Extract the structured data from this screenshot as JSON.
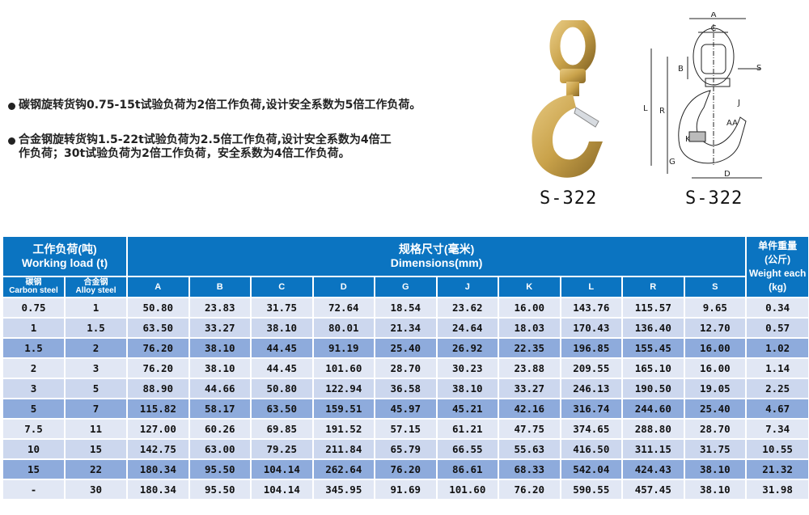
{
  "notes": [
    "碳钢旋转货钩0.75-15t试验负荷为2倍工作负荷,设计安全系数为5倍工作负荷。",
    "合金钢旋转货钩1.5-22t试验负荷为2.5倍工作负荷,设计安全系数为4倍工作负荷；30t试验负荷为2倍工作负荷，安全系数为4倍工作负荷。"
  ],
  "product": {
    "photo_label": "S-322",
    "drawing_label": "S-322",
    "drawing_letters": [
      "A",
      "C",
      "B",
      "S",
      "L",
      "R",
      "J",
      "AA",
      "K",
      "G",
      "D"
    ],
    "photo_color": "#c9a24a"
  },
  "table": {
    "header_color": "#0b74c1",
    "working_load_cn": "工作负荷(吨)",
    "working_load_en": "Working load (t)",
    "dimensions_cn": "规格尺寸(毫米)",
    "dimensions_en": "Dimensions(mm)",
    "weight_cn": "单件重量",
    "weight_unit_cn": "(公斤)",
    "weight_en": "Weight each",
    "weight_unit_en": "(kg)",
    "carbon_cn": "碳钢",
    "carbon_en": "Carbon steel",
    "alloy_cn": "合金钢",
    "alloy_en": "Alloy steel",
    "dim_columns": [
      "A",
      "B",
      "C",
      "D",
      "G",
      "J",
      "K",
      "L",
      "R",
      "S"
    ],
    "rows": [
      [
        "0.75",
        "1",
        "50.80",
        "23.83",
        "31.75",
        "72.64",
        "18.54",
        "23.62",
        "16.00",
        "143.76",
        "115.57",
        "9.65",
        "0.34"
      ],
      [
        "1",
        "1.5",
        "63.50",
        "33.27",
        "38.10",
        "80.01",
        "21.34",
        "24.64",
        "18.03",
        "170.43",
        "136.40",
        "12.70",
        "0.57"
      ],
      [
        "1.5",
        "2",
        "76.20",
        "38.10",
        "44.45",
        "91.19",
        "25.40",
        "26.92",
        "22.35",
        "196.85",
        "155.45",
        "16.00",
        "1.02"
      ],
      [
        "2",
        "3",
        "76.20",
        "38.10",
        "44.45",
        "101.60",
        "28.70",
        "30.23",
        "23.88",
        "209.55",
        "165.10",
        "16.00",
        "1.14"
      ],
      [
        "3",
        "5",
        "88.90",
        "44.66",
        "50.80",
        "122.94",
        "36.58",
        "38.10",
        "33.27",
        "246.13",
        "190.50",
        "19.05",
        "2.25"
      ],
      [
        "5",
        "7",
        "115.82",
        "58.17",
        "63.50",
        "159.51",
        "45.97",
        "45.21",
        "42.16",
        "316.74",
        "244.60",
        "25.40",
        "4.67"
      ],
      [
        "7.5",
        "11",
        "127.00",
        "60.26",
        "69.85",
        "191.52",
        "57.15",
        "61.21",
        "47.75",
        "374.65",
        "288.80",
        "28.70",
        "7.34"
      ],
      [
        "10",
        "15",
        "142.75",
        "63.00",
        "79.25",
        "211.84",
        "65.79",
        "66.55",
        "55.63",
        "416.50",
        "311.15",
        "31.75",
        "10.55"
      ],
      [
        "15",
        "22",
        "180.34",
        "95.50",
        "104.14",
        "262.64",
        "76.20",
        "86.61",
        "68.33",
        "542.04",
        "424.43",
        "38.10",
        "21.32"
      ],
      [
        "-",
        "30",
        "180.34",
        "95.50",
        "104.14",
        "345.95",
        "91.69",
        "101.60",
        "76.20",
        "590.55",
        "457.45",
        "38.10",
        "31.98"
      ]
    ]
  }
}
